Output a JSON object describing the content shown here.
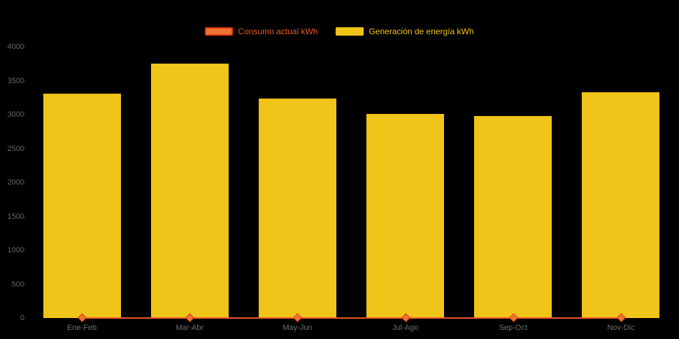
{
  "chart": {
    "background_color": "#000000",
    "bar_color": "#f0c419",
    "line_color": "#e8572b",
    "axis_label_color": "#666666",
    "legend": {
      "consumo_label": "Consumo actual kWh",
      "generacion_label": "Generación de energía kWh"
    }
  },
  "chart_data": {
    "type": "bar",
    "title": "",
    "xlabel": "",
    "ylabel": "",
    "categories": [
      "Ene-Feb",
      "Mar-Abr",
      "May-Jun",
      "Jul-Ago",
      "Sep-Oct",
      "Nov-Dic"
    ],
    "series": [
      {
        "name": "Consumo actual kWh",
        "type": "line",
        "color": "#e8572b",
        "values": [
          0,
          0,
          0,
          0,
          0,
          0
        ]
      },
      {
        "name": "Generación de energía kWh",
        "type": "column",
        "color": "#f0c419",
        "values": [
          3310,
          3750,
          3240,
          3010,
          2980,
          3330
        ]
      }
    ],
    "ylim": [
      0,
      4000
    ],
    "yticks": [
      0,
      500,
      1000,
      1500,
      2000,
      2500,
      3000,
      3500,
      4000
    ],
    "grid": false,
    "legend_position": "top"
  }
}
